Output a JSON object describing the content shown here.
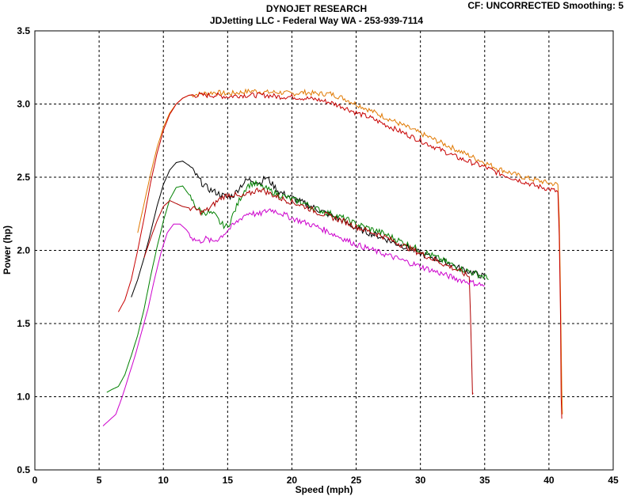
{
  "header": {
    "title": "DYNOJET RESEARCH",
    "subtitle": "JDJetting LLC  - Federal Way WA - 253-939-7114",
    "cf_text": "CF: UNCORRECTED  Smoothing: 5"
  },
  "chart_data": {
    "type": "line",
    "xlabel": "Speed (mph)",
    "ylabel": "Power (hp)",
    "xlim": [
      0,
      45
    ],
    "ylim": [
      0.5,
      3.5
    ],
    "xticks": [
      0,
      5,
      10,
      15,
      20,
      25,
      30,
      35,
      40,
      45
    ],
    "yticks": [
      0.5,
      1.0,
      1.5,
      2.0,
      2.5,
      3.0,
      3.5
    ],
    "ytick_labels": [
      "0.5",
      "1.0",
      "1.5",
      "2.0",
      "2.5",
      "3.0",
      "3.5"
    ],
    "grid": true,
    "series": [
      {
        "color": "#e07800",
        "noise": 0.018,
        "points": [
          [
            8.0,
            2.12
          ],
          [
            8.5,
            2.32
          ],
          [
            9,
            2.52
          ],
          [
            9.5,
            2.7
          ],
          [
            10,
            2.84
          ],
          [
            10.5,
            2.94
          ],
          [
            11,
            3.0
          ],
          [
            11.5,
            3.04
          ],
          [
            12,
            3.06
          ],
          [
            13,
            3.07
          ],
          [
            14,
            3.08
          ],
          [
            15,
            3.07
          ],
          [
            16,
            3.08
          ],
          [
            17,
            3.09
          ],
          [
            18,
            3.08
          ],
          [
            19,
            3.08
          ],
          [
            20,
            3.07
          ],
          [
            21,
            3.08
          ],
          [
            22,
            3.07
          ],
          [
            23,
            3.07
          ],
          [
            24,
            3.04
          ],
          [
            25,
            3.0
          ],
          [
            26,
            2.96
          ],
          [
            27,
            2.92
          ],
          [
            28,
            2.88
          ],
          [
            29,
            2.84
          ],
          [
            30,
            2.8
          ],
          [
            31,
            2.76
          ],
          [
            32,
            2.72
          ],
          [
            33,
            2.68
          ],
          [
            34,
            2.64
          ],
          [
            35,
            2.6
          ],
          [
            36,
            2.56
          ],
          [
            37,
            2.53
          ],
          [
            38,
            2.5
          ],
          [
            39,
            2.48
          ],
          [
            40,
            2.46
          ],
          [
            40.7,
            2.45
          ],
          [
            40.8,
            2.22
          ],
          [
            40.9,
            1.7
          ],
          [
            41.0,
            1.05
          ],
          [
            41.05,
            0.88
          ]
        ]
      },
      {
        "color": "#c80000",
        "noise": 0.018,
        "points": [
          [
            6.5,
            1.58
          ],
          [
            7,
            1.66
          ],
          [
            7.5,
            1.8
          ],
          [
            8,
            2.0
          ],
          [
            8.5,
            2.22
          ],
          [
            9,
            2.46
          ],
          [
            9.5,
            2.66
          ],
          [
            10,
            2.82
          ],
          [
            10.5,
            2.93
          ],
          [
            11,
            3.0
          ],
          [
            11.5,
            3.04
          ],
          [
            12,
            3.06
          ],
          [
            13,
            3.06
          ],
          [
            14,
            3.06
          ],
          [
            15,
            3.05
          ],
          [
            16,
            3.06
          ],
          [
            17,
            3.06
          ],
          [
            18,
            3.06
          ],
          [
            19,
            3.05
          ],
          [
            20,
            3.05
          ],
          [
            21,
            3.04
          ],
          [
            22,
            3.03
          ],
          [
            23,
            3.01
          ],
          [
            24,
            2.98
          ],
          [
            25,
            2.94
          ],
          [
            26,
            2.91
          ],
          [
            27,
            2.87
          ],
          [
            28,
            2.83
          ],
          [
            29,
            2.79
          ],
          [
            30,
            2.75
          ],
          [
            31,
            2.71
          ],
          [
            32,
            2.67
          ],
          [
            33,
            2.63
          ],
          [
            34,
            2.6
          ],
          [
            35,
            2.57
          ],
          [
            36,
            2.53
          ],
          [
            37,
            2.5
          ],
          [
            38,
            2.47
          ],
          [
            39,
            2.44
          ],
          [
            40,
            2.42
          ],
          [
            40.7,
            2.4
          ],
          [
            40.8,
            2.1
          ],
          [
            40.9,
            1.55
          ],
          [
            40.95,
            1.0
          ],
          [
            41.0,
            0.85
          ]
        ]
      },
      {
        "color": "#000000",
        "noise": 0.022,
        "points": [
          [
            7.5,
            1.68
          ],
          [
            8,
            1.8
          ],
          [
            8.5,
            1.95
          ],
          [
            9,
            2.12
          ],
          [
            9.5,
            2.3
          ],
          [
            10,
            2.45
          ],
          [
            10.5,
            2.55
          ],
          [
            11,
            2.6
          ],
          [
            11.5,
            2.61
          ],
          [
            12,
            2.58
          ],
          [
            12.5,
            2.52
          ],
          [
            13,
            2.46
          ],
          [
            13.5,
            2.42
          ],
          [
            14,
            2.4
          ],
          [
            14.5,
            2.38
          ],
          [
            15,
            2.36
          ],
          [
            15.5,
            2.38
          ],
          [
            16,
            2.44
          ],
          [
            16.5,
            2.48
          ],
          [
            17,
            2.48
          ],
          [
            17.5,
            2.46
          ],
          [
            18,
            2.5
          ],
          [
            18.5,
            2.45
          ],
          [
            19,
            2.4
          ],
          [
            20,
            2.36
          ],
          [
            21,
            2.32
          ],
          [
            22,
            2.28
          ],
          [
            23,
            2.24
          ],
          [
            24,
            2.2
          ],
          [
            25,
            2.15
          ],
          [
            26,
            2.12
          ],
          [
            27,
            2.09
          ],
          [
            28,
            2.05
          ],
          [
            29,
            2.02
          ],
          [
            30,
            1.98
          ],
          [
            31,
            1.95
          ],
          [
            32,
            1.92
          ],
          [
            33,
            1.88
          ],
          [
            34,
            1.85
          ],
          [
            35,
            1.82
          ]
        ]
      },
      {
        "color": "#008000",
        "noise": 0.022,
        "points": [
          [
            5.6,
            1.03
          ],
          [
            6,
            1.05
          ],
          [
            6.5,
            1.07
          ],
          [
            7,
            1.15
          ],
          [
            7.5,
            1.28
          ],
          [
            8,
            1.42
          ],
          [
            8.5,
            1.6
          ],
          [
            9,
            1.82
          ],
          [
            9.5,
            2.02
          ],
          [
            10,
            2.2
          ],
          [
            10.5,
            2.35
          ],
          [
            11,
            2.43
          ],
          [
            11.5,
            2.44
          ],
          [
            12,
            2.38
          ],
          [
            12.5,
            2.3
          ],
          [
            13,
            2.26
          ],
          [
            13.5,
            2.26
          ],
          [
            14,
            2.24
          ],
          [
            14.5,
            2.18
          ],
          [
            15,
            2.16
          ],
          [
            15.5,
            2.26
          ],
          [
            16,
            2.36
          ],
          [
            16.5,
            2.44
          ],
          [
            17,
            2.46
          ],
          [
            17.5,
            2.44
          ],
          [
            18,
            2.42
          ],
          [
            18.5,
            2.4
          ],
          [
            19,
            2.38
          ],
          [
            20,
            2.35
          ],
          [
            21,
            2.32
          ],
          [
            22,
            2.28
          ],
          [
            23,
            2.25
          ],
          [
            24,
            2.22
          ],
          [
            25,
            2.18
          ],
          [
            26,
            2.15
          ],
          [
            27,
            2.12
          ],
          [
            28,
            2.08
          ],
          [
            29,
            2.04
          ],
          [
            30,
            2.0
          ],
          [
            31,
            1.96
          ],
          [
            32,
            1.92
          ],
          [
            33,
            1.88
          ],
          [
            34,
            1.85
          ],
          [
            35,
            1.82
          ],
          [
            35.3,
            1.8
          ]
        ]
      },
      {
        "color": "#b00000",
        "noise": 0.02,
        "points": [
          [
            8.5,
            1.95
          ],
          [
            9,
            2.08
          ],
          [
            9.5,
            2.2
          ],
          [
            10,
            2.3
          ],
          [
            10.5,
            2.34
          ],
          [
            11,
            2.32
          ],
          [
            11.5,
            2.3
          ],
          [
            12,
            2.29
          ],
          [
            12.5,
            2.28
          ],
          [
            13,
            2.26
          ],
          [
            13.5,
            2.28
          ],
          [
            14,
            2.32
          ],
          [
            14.5,
            2.36
          ],
          [
            15,
            2.38
          ],
          [
            15.5,
            2.38
          ],
          [
            16,
            2.36
          ],
          [
            16.5,
            2.38
          ],
          [
            17,
            2.4
          ],
          [
            17.5,
            2.42
          ],
          [
            18,
            2.4
          ],
          [
            19,
            2.36
          ],
          [
            20,
            2.33
          ],
          [
            21,
            2.3
          ],
          [
            22,
            2.26
          ],
          [
            23,
            2.23
          ],
          [
            24,
            2.2
          ],
          [
            25,
            2.16
          ],
          [
            26,
            2.13
          ],
          [
            27,
            2.1
          ],
          [
            28,
            2.06
          ],
          [
            29,
            2.02
          ],
          [
            30,
            1.98
          ],
          [
            31,
            1.94
          ],
          [
            32,
            1.9
          ],
          [
            33,
            1.86
          ],
          [
            33.8,
            1.82
          ],
          [
            33.9,
            1.55
          ],
          [
            34.0,
            1.2
          ],
          [
            34.05,
            1.02
          ],
          [
            34.1,
            1.02
          ]
        ]
      },
      {
        "color": "#cc00cc",
        "noise": 0.02,
        "points": [
          [
            5.3,
            0.8
          ],
          [
            5.8,
            0.84
          ],
          [
            6.3,
            0.88
          ],
          [
            6.8,
            1.0
          ],
          [
            7.3,
            1.14
          ],
          [
            7.8,
            1.28
          ],
          [
            8.3,
            1.44
          ],
          [
            8.8,
            1.6
          ],
          [
            9.3,
            1.8
          ],
          [
            9.8,
            1.98
          ],
          [
            10.3,
            2.12
          ],
          [
            10.8,
            2.18
          ],
          [
            11.3,
            2.18
          ],
          [
            11.8,
            2.14
          ],
          [
            12.3,
            2.08
          ],
          [
            12.8,
            2.06
          ],
          [
            13.3,
            2.08
          ],
          [
            13.8,
            2.06
          ],
          [
            14.3,
            2.08
          ],
          [
            14.8,
            2.12
          ],
          [
            15.3,
            2.16
          ],
          [
            15.8,
            2.2
          ],
          [
            16.3,
            2.24
          ],
          [
            16.8,
            2.26
          ],
          [
            17.3,
            2.24
          ],
          [
            17.8,
            2.26
          ],
          [
            18.3,
            2.28
          ],
          [
            19,
            2.26
          ],
          [
            20,
            2.22
          ],
          [
            21,
            2.19
          ],
          [
            22,
            2.16
          ],
          [
            23,
            2.12
          ],
          [
            24,
            2.08
          ],
          [
            25,
            2.04
          ],
          [
            26,
            2.01
          ],
          [
            27,
            1.98
          ],
          [
            28,
            1.95
          ],
          [
            29,
            1.92
          ],
          [
            30,
            1.89
          ],
          [
            31,
            1.86
          ],
          [
            32,
            1.83
          ],
          [
            33,
            1.8
          ],
          [
            34,
            1.78
          ],
          [
            35,
            1.76
          ]
        ]
      }
    ]
  }
}
